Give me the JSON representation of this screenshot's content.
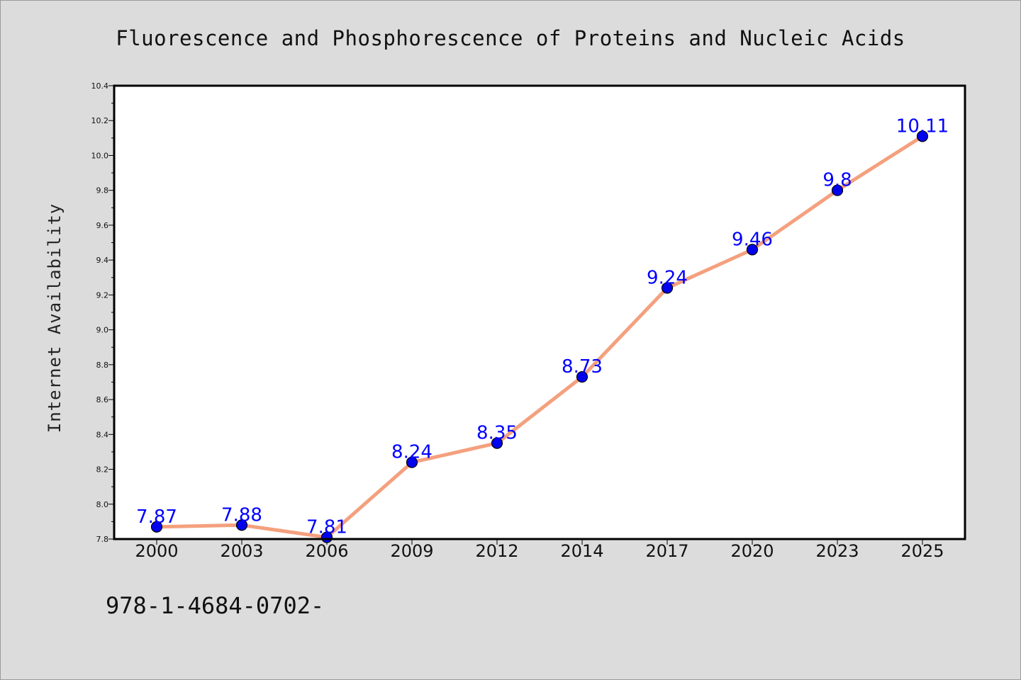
{
  "chart_data": {
    "type": "line",
    "title": "Fluorescence and Phosphorescence of Proteins and Nucleic Acids",
    "xlabel": "",
    "ylabel": "Internet Availability",
    "categories": [
      "2000",
      "2003",
      "2006",
      "2009",
      "2012",
      "2014",
      "2017",
      "2020",
      "2023",
      "2025"
    ],
    "series": [
      {
        "values": [
          7.87,
          7.88,
          7.81,
          8.24,
          8.35,
          8.73,
          9.24,
          9.46,
          9.8,
          10.11
        ],
        "labels": [
          "7.87",
          "7.88",
          "7.81",
          "8.24",
          "8.35",
          "8.73",
          "9.24",
          "9.46",
          "9.8",
          "10.11"
        ],
        "line_color": "#f4a07e",
        "marker_color": "#0000ee"
      }
    ],
    "ylim": [
      7.8,
      10.4
    ],
    "yticks": [
      "7.8",
      "8.0",
      "8.2",
      "8.4",
      "8.6",
      "8.8",
      "9.0",
      "9.2",
      "9.4",
      "9.6",
      "9.8",
      "10.0",
      "10.2",
      "10.4"
    ],
    "grid": false,
    "legend": "none"
  },
  "footer": {
    "text": "978-1-4684-0702-"
  },
  "colors": {
    "background": "#dcdcdc",
    "plot_background": "#ffffff",
    "label_color": "#0000ff"
  }
}
